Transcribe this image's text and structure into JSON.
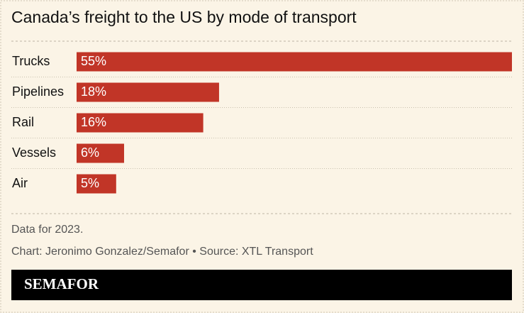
{
  "chart_data": {
    "type": "bar",
    "orientation": "horizontal",
    "title": "Canada’s freight to the US by mode of transport",
    "categories": [
      "Trucks",
      "Pipelines",
      "Rail",
      "Vessels",
      "Air"
    ],
    "values": [
      55,
      18,
      16,
      6,
      5
    ],
    "value_labels": [
      "55%",
      "18%",
      "16%",
      "6%",
      "5%"
    ],
    "color": "#c13527",
    "notes": [
      "Data for 2023.",
      "Chart: Jeronimo Gonzalez/Semafor • Source: XTL Transport"
    ],
    "brand": "SEMAFOR"
  }
}
